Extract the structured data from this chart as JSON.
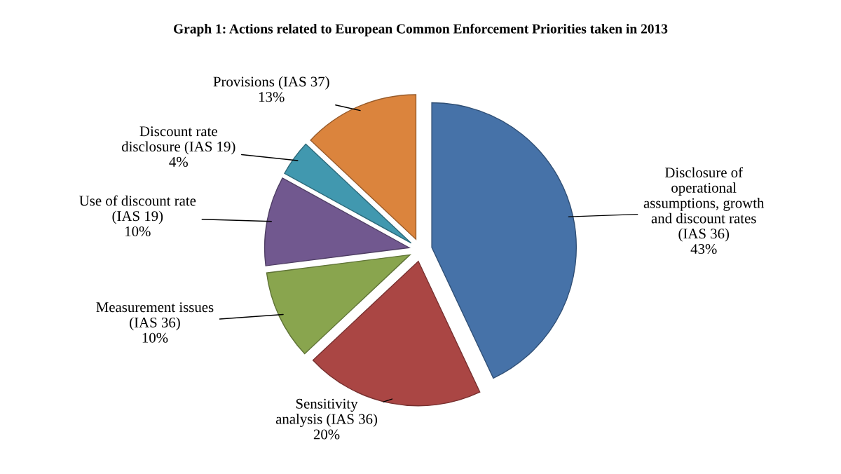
{
  "chart_data": {
    "type": "pie",
    "title": "Graph 1: Actions related to European Common Enforcement Priorities taken in 2013",
    "categories": [
      "Disclosure of\noperational\nassumptions, growth\nand discount rates\n(IAS 36)",
      "Sensitivity\nanalysis (IAS 36)",
      "Measurement issues\n(IAS 36)",
      "Use of discount rate\n(IAS 19)",
      "Discount rate\ndisclosure (IAS 19)",
      "Provisions (IAS 37)"
    ],
    "values": [
      43,
      20,
      10,
      10,
      4,
      13
    ],
    "value_labels": [
      "43%",
      "20%",
      "10%",
      "10%",
      "4%",
      "13%"
    ],
    "colors": [
      "#4672a8",
      "#aa4644",
      "#89a54e",
      "#71588f",
      "#4198af",
      "#db843d"
    ]
  }
}
